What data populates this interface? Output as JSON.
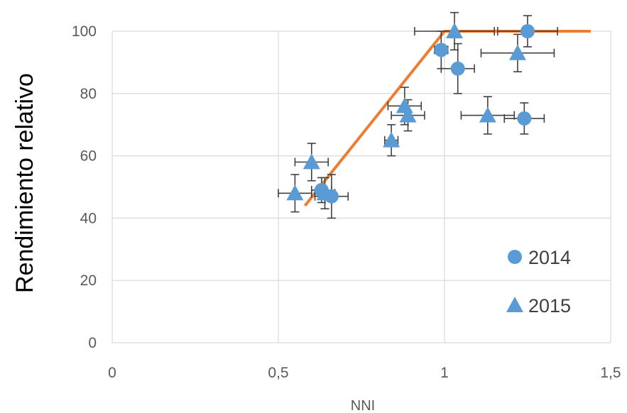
{
  "chart_data": {
    "type": "scatter",
    "xlabel": "NNI",
    "ylabel": "Rendimiento relativo",
    "xlim": [
      0,
      1.5
    ],
    "ylim": [
      0,
      100
    ],
    "x_ticks": [
      "0",
      "0,5",
      "1",
      "1,5"
    ],
    "y_ticks": [
      "0",
      "20",
      "40",
      "60",
      "80",
      "100"
    ],
    "grid": "vertical and horizontal",
    "legend_position": "bottom-right",
    "series": [
      {
        "name": "2014",
        "marker": "circle",
        "color": "#5b9bd5",
        "points": [
          {
            "x": 0.63,
            "y": 49,
            "xerr": 0.03,
            "yerr": 4
          },
          {
            "x": 0.66,
            "y": 47,
            "xerr": 0.05,
            "yerr": 7
          },
          {
            "x": 0.99,
            "y": 94,
            "xerr": 0.02,
            "yerr": 6
          },
          {
            "x": 1.04,
            "y": 88,
            "xerr": 0.05,
            "yerr": 8
          },
          {
            "x": 1.25,
            "y": 100,
            "xerr": 0.09,
            "yerr": 5
          },
          {
            "x": 1.24,
            "y": 72,
            "xerr": 0.06,
            "yerr": 5
          }
        ]
      },
      {
        "name": "2015",
        "marker": "triangle",
        "color": "#5b9bd5",
        "points": [
          {
            "x": 0.55,
            "y": 48,
            "xerr": 0.05,
            "yerr": 6
          },
          {
            "x": 0.6,
            "y": 58,
            "xerr": 0.05,
            "yerr": 6
          },
          {
            "x": 0.64,
            "y": 48,
            "xerr": 0.03,
            "yerr": 5
          },
          {
            "x": 0.84,
            "y": 65,
            "xerr": 0.02,
            "yerr": 5
          },
          {
            "x": 0.88,
            "y": 76,
            "xerr": 0.05,
            "yerr": 6
          },
          {
            "x": 0.89,
            "y": 73,
            "xerr": 0.05,
            "yerr": 5
          },
          {
            "x": 1.03,
            "y": 100,
            "xerr": 0.12,
            "yerr": 6
          },
          {
            "x": 1.13,
            "y": 73,
            "xerr": 0.08,
            "yerr": 6
          },
          {
            "x": 1.22,
            "y": 93,
            "xerr": 0.11,
            "yerr": 6
          }
        ]
      }
    ],
    "fit_line": {
      "color": "#ed7d31",
      "points": [
        [
          0.58,
          44
        ],
        [
          1.0,
          100
        ],
        [
          1.44,
          100
        ]
      ]
    }
  }
}
